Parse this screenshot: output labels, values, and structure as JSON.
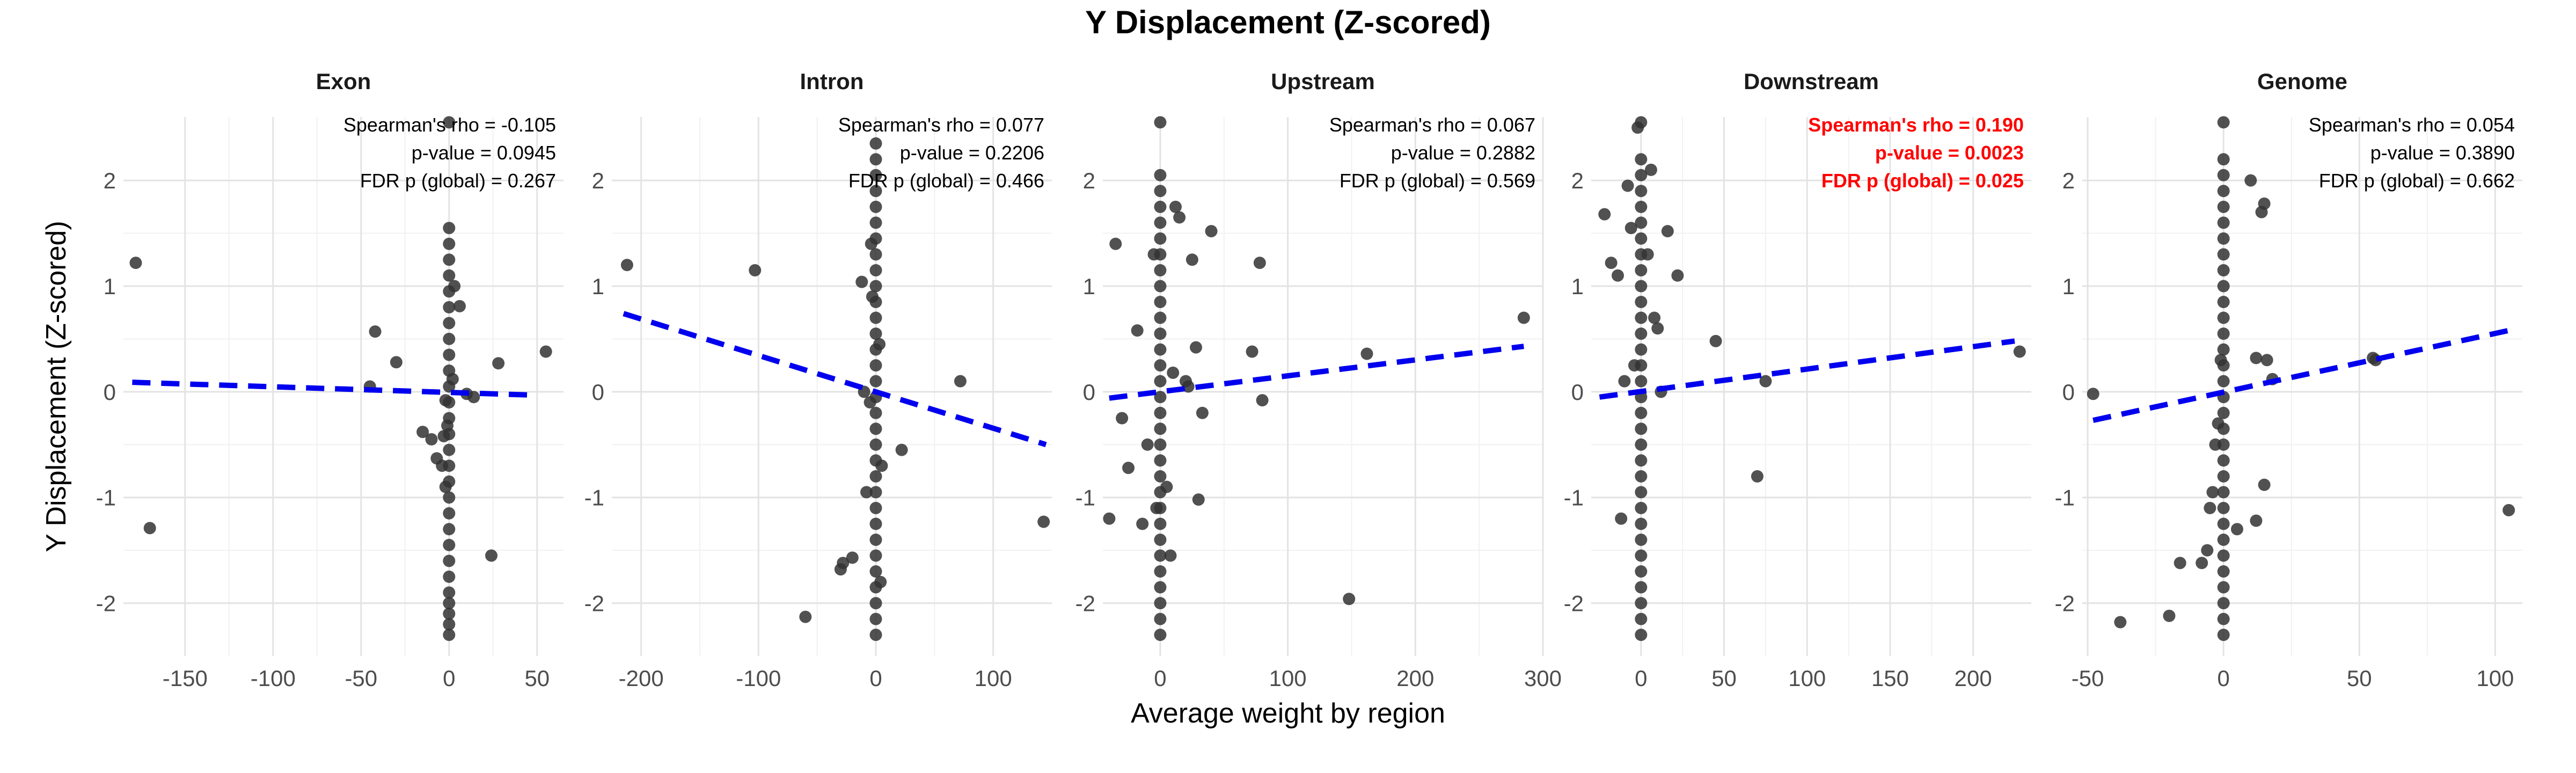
{
  "title": "Y Displacement (Z-scored)",
  "xlabel": "Average weight by region",
  "ylabel": "Y Displacement (Z-scored)",
  "highlight_color": "#ff0000",
  "chart_data": {
    "type": "scatter",
    "grid": true,
    "trend_style": "dashed linear fit",
    "trend_color": "#0000ee",
    "point_color": "#333333",
    "facets": [
      {
        "name": "Exon",
        "xlim": [
          -185,
          65
        ],
        "ylim": [
          -2.5,
          2.6
        ],
        "xticks": [
          -150,
          -100,
          -50,
          0,
          50
        ],
        "yticks": [
          -2,
          -1,
          0,
          1,
          2
        ],
        "stats": [
          "Spearman's rho = -0.105",
          "p-value = 0.0945",
          "FDR p (global) = 0.267"
        ],
        "significant": false,
        "trend": {
          "x": [
            -180,
            45
          ],
          "y": [
            0.09,
            -0.03
          ]
        },
        "points": [
          [
            -178,
            1.22
          ],
          [
            -170,
            -1.29
          ],
          [
            -42,
            0.57
          ],
          [
            -45,
            0.05
          ],
          [
            -30,
            0.28
          ],
          [
            -15,
            -0.38
          ],
          [
            -10,
            -0.45
          ],
          [
            -7,
            -0.63
          ],
          [
            -4,
            -0.7
          ],
          [
            -3,
            -0.42
          ],
          [
            -2,
            -0.08
          ],
          [
            -1,
            -0.32
          ],
          [
            6,
            0.81
          ],
          [
            10,
            -0.02
          ],
          [
            14,
            -0.05
          ],
          [
            24,
            -1.55
          ],
          [
            28,
            0.27
          ],
          [
            55,
            0.38
          ],
          [
            0,
            2.55
          ],
          [
            0,
            -2.3
          ],
          [
            0,
            -2.2
          ],
          [
            0,
            -2.1
          ],
          [
            0,
            -2.0
          ],
          [
            0,
            -1.9
          ],
          [
            0,
            -1.75
          ],
          [
            0,
            -1.6
          ],
          [
            0,
            -1.45
          ],
          [
            0,
            -1.3
          ],
          [
            0,
            -1.15
          ],
          [
            0,
            -1.0
          ],
          [
            0,
            -0.85
          ],
          [
            0,
            -0.7
          ],
          [
            0,
            -0.55
          ],
          [
            0,
            -0.4
          ],
          [
            0,
            -0.25
          ],
          [
            0,
            -0.1
          ],
          [
            0,
            0.05
          ],
          [
            0,
            0.2
          ],
          [
            0,
            0.35
          ],
          [
            0,
            0.5
          ],
          [
            0,
            0.65
          ],
          [
            0,
            0.8
          ],
          [
            0,
            0.95
          ],
          [
            0,
            1.1
          ],
          [
            0,
            1.25
          ],
          [
            0,
            1.4
          ],
          [
            0,
            1.55
          ],
          [
            2,
            0.12
          ],
          [
            -2,
            -0.9
          ],
          [
            3,
            1.0
          ]
        ]
      },
      {
        "name": "Intron",
        "xlim": [
          -225,
          150
        ],
        "ylim": [
          -2.5,
          2.6
        ],
        "xticks": [
          -200,
          -100,
          0,
          100
        ],
        "yticks": [
          -2,
          -1,
          0,
          1,
          2
        ],
        "stats": [
          "Spearman's rho = 0.077",
          "p-value = 0.2206",
          "FDR p (global) = 0.466"
        ],
        "significant": false,
        "trend": {
          "x": [
            -215,
            145
          ],
          "y": [
            0.74,
            -0.5
          ]
        },
        "points": [
          [
            -212,
            1.2
          ],
          [
            -103,
            1.15
          ],
          [
            -60,
            -2.13
          ],
          [
            -30,
            -1.68
          ],
          [
            -28,
            -1.62
          ],
          [
            -20,
            -1.57
          ],
          [
            -12,
            1.04
          ],
          [
            -10,
            0.0
          ],
          [
            -8,
            -0.95
          ],
          [
            -5,
            -0.1
          ],
          [
            -3,
            0.9
          ],
          [
            5,
            -0.7
          ],
          [
            22,
            -0.55
          ],
          [
            72,
            0.1
          ],
          [
            143,
            -1.23
          ],
          [
            0,
            -2.3
          ],
          [
            0,
            -2.15
          ],
          [
            0,
            -2.0
          ],
          [
            0,
            -1.85
          ],
          [
            0,
            -1.7
          ],
          [
            0,
            -1.55
          ],
          [
            0,
            -1.4
          ],
          [
            0,
            -1.25
          ],
          [
            0,
            -1.1
          ],
          [
            0,
            -0.95
          ],
          [
            0,
            -0.8
          ],
          [
            0,
            -0.65
          ],
          [
            0,
            -0.5
          ],
          [
            0,
            -0.35
          ],
          [
            0,
            -0.2
          ],
          [
            0,
            -0.05
          ],
          [
            0,
            0.1
          ],
          [
            0,
            0.25
          ],
          [
            0,
            0.4
          ],
          [
            0,
            0.55
          ],
          [
            0,
            0.7
          ],
          [
            0,
            0.85
          ],
          [
            0,
            1.0
          ],
          [
            0,
            1.15
          ],
          [
            0,
            1.3
          ],
          [
            0,
            1.45
          ],
          [
            0,
            1.6
          ],
          [
            0,
            1.75
          ],
          [
            0,
            1.9
          ],
          [
            0,
            2.05
          ],
          [
            0,
            2.2
          ],
          [
            0,
            2.35
          ],
          [
            3,
            0.45
          ],
          [
            -4,
            1.4
          ],
          [
            4,
            -1.8
          ]
        ]
      },
      {
        "name": "Upstream",
        "xlim": [
          -45,
          300
        ],
        "ylim": [
          -2.5,
          2.6
        ],
        "xticks": [
          0,
          100,
          200,
          300
        ],
        "yticks": [
          -2,
          -1,
          0,
          1,
          2
        ],
        "stats": [
          "Spearman's rho = 0.067",
          "p-value = 0.2882",
          "FDR p (global) = 0.569"
        ],
        "significant": false,
        "trend": {
          "x": [
            -40,
            285
          ],
          "y": [
            -0.06,
            0.43
          ]
        },
        "points": [
          [
            -35,
            1.4
          ],
          [
            -30,
            -0.25
          ],
          [
            -25,
            -0.72
          ],
          [
            -18,
            0.58
          ],
          [
            -14,
            -1.25
          ],
          [
            -10,
            -0.5
          ],
          [
            -5,
            1.3
          ],
          [
            -3,
            -1.1
          ],
          [
            5,
            -0.9
          ],
          [
            8,
            -1.55
          ],
          [
            10,
            0.18
          ],
          [
            12,
            1.75
          ],
          [
            15,
            1.65
          ],
          [
            20,
            0.1
          ],
          [
            22,
            0.05
          ],
          [
            25,
            1.25
          ],
          [
            28,
            0.42
          ],
          [
            30,
            -1.02
          ],
          [
            33,
            -0.2
          ],
          [
            40,
            1.52
          ],
          [
            72,
            0.38
          ],
          [
            78,
            1.22
          ],
          [
            80,
            -0.08
          ],
          [
            148,
            -1.96
          ],
          [
            162,
            0.36
          ],
          [
            285,
            0.7
          ],
          [
            -40,
            -1.2
          ],
          [
            0,
            2.55
          ],
          [
            0,
            -2.3
          ],
          [
            0,
            -2.15
          ],
          [
            0,
            -2.0
          ],
          [
            0,
            -1.85
          ],
          [
            0,
            -1.7
          ],
          [
            0,
            -1.55
          ],
          [
            0,
            -1.4
          ],
          [
            0,
            -1.25
          ],
          [
            0,
            -1.1
          ],
          [
            0,
            -0.95
          ],
          [
            0,
            -0.8
          ],
          [
            0,
            -0.65
          ],
          [
            0,
            -0.5
          ],
          [
            0,
            -0.35
          ],
          [
            0,
            -0.2
          ],
          [
            0,
            -0.05
          ],
          [
            0,
            0.1
          ],
          [
            0,
            0.25
          ],
          [
            0,
            0.4
          ],
          [
            0,
            0.55
          ],
          [
            0,
            0.7
          ],
          [
            0,
            0.85
          ],
          [
            0,
            1.0
          ],
          [
            0,
            1.15
          ],
          [
            0,
            1.3
          ],
          [
            0,
            1.45
          ],
          [
            0,
            1.6
          ],
          [
            0,
            1.75
          ],
          [
            0,
            1.9
          ],
          [
            0,
            2.05
          ]
        ]
      },
      {
        "name": "Downstream",
        "xlim": [
          -30,
          235
        ],
        "ylim": [
          -2.5,
          2.6
        ],
        "xticks": [
          0,
          50,
          100,
          150,
          200
        ],
        "yticks": [
          -2,
          -1,
          0,
          1,
          2
        ],
        "stats": [
          "Spearman's rho = 0.190",
          "p-value = 0.0023",
          "FDR p (global) = 0.025"
        ],
        "significant": true,
        "trend": {
          "x": [
            -25,
            225
          ],
          "y": [
            -0.05,
            0.48
          ]
        },
        "points": [
          [
            -22,
            1.68
          ],
          [
            -18,
            1.22
          ],
          [
            -14,
            1.1
          ],
          [
            -12,
            -1.2
          ],
          [
            -10,
            0.1
          ],
          [
            -8,
            1.95
          ],
          [
            -6,
            1.55
          ],
          [
            -4,
            0.25
          ],
          [
            -2,
            2.5
          ],
          [
            4,
            1.3
          ],
          [
            6,
            2.1
          ],
          [
            8,
            0.7
          ],
          [
            10,
            0.6
          ],
          [
            12,
            0.0
          ],
          [
            16,
            1.52
          ],
          [
            22,
            1.1
          ],
          [
            45,
            0.48
          ],
          [
            75,
            0.1
          ],
          [
            70,
            -0.8
          ],
          [
            228,
            0.38
          ],
          [
            0,
            2.55
          ],
          [
            0,
            -2.3
          ],
          [
            0,
            -2.15
          ],
          [
            0,
            -2.0
          ],
          [
            0,
            -1.85
          ],
          [
            0,
            -1.7
          ],
          [
            0,
            -1.55
          ],
          [
            0,
            -1.4
          ],
          [
            0,
            -1.25
          ],
          [
            0,
            -1.1
          ],
          [
            0,
            -0.95
          ],
          [
            0,
            -0.8
          ],
          [
            0,
            -0.65
          ],
          [
            0,
            -0.5
          ],
          [
            0,
            -0.35
          ],
          [
            0,
            -0.2
          ],
          [
            0,
            -0.05
          ],
          [
            0,
            0.1
          ],
          [
            0,
            0.25
          ],
          [
            0,
            0.4
          ],
          [
            0,
            0.55
          ],
          [
            0,
            0.7
          ],
          [
            0,
            0.85
          ],
          [
            0,
            1.0
          ],
          [
            0,
            1.15
          ],
          [
            0,
            1.3
          ],
          [
            0,
            1.45
          ],
          [
            0,
            1.6
          ],
          [
            0,
            1.75
          ],
          [
            0,
            1.9
          ],
          [
            0,
            2.05
          ],
          [
            0,
            2.2
          ]
        ]
      },
      {
        "name": "Genome",
        "xlim": [
          -52,
          110
        ],
        "ylim": [
          -2.5,
          2.6
        ],
        "xticks": [
          -50,
          0,
          50,
          100
        ],
        "yticks": [
          -2,
          -1,
          0,
          1,
          2
        ],
        "stats": [
          "Spearman's rho = 0.054",
          "p-value = 0.3890",
          "FDR p (global) = 0.662"
        ],
        "significant": false,
        "trend": {
          "x": [
            -48,
            105
          ],
          "y": [
            -0.27,
            0.58
          ]
        },
        "points": [
          [
            -48,
            -0.02
          ],
          [
            -38,
            -2.18
          ],
          [
            -20,
            -2.12
          ],
          [
            -16,
            -1.62
          ],
          [
            -8,
            -1.62
          ],
          [
            -6,
            -1.5
          ],
          [
            -5,
            -1.1
          ],
          [
            -4,
            -0.95
          ],
          [
            -3,
            -0.5
          ],
          [
            -2,
            -0.3
          ],
          [
            -1,
            0.3
          ],
          [
            5,
            -1.3
          ],
          [
            10,
            2.0
          ],
          [
            14,
            1.7
          ],
          [
            15,
            1.78
          ],
          [
            12,
            0.32
          ],
          [
            16,
            0.3
          ],
          [
            15,
            -0.88
          ],
          [
            12,
            -1.22
          ],
          [
            18,
            0.12
          ],
          [
            55,
            0.32
          ],
          [
            56,
            0.3
          ],
          [
            105,
            -1.12
          ],
          [
            0,
            2.55
          ],
          [
            0,
            -2.3
          ],
          [
            0,
            -2.15
          ],
          [
            0,
            -2.0
          ],
          [
            0,
            -1.85
          ],
          [
            0,
            -1.7
          ],
          [
            0,
            -1.55
          ],
          [
            0,
            -1.4
          ],
          [
            0,
            -1.25
          ],
          [
            0,
            -1.1
          ],
          [
            0,
            -0.95
          ],
          [
            0,
            -0.8
          ],
          [
            0,
            -0.65
          ],
          [
            0,
            -0.5
          ],
          [
            0,
            -0.35
          ],
          [
            0,
            -0.2
          ],
          [
            0,
            -0.05
          ],
          [
            0,
            0.1
          ],
          [
            0,
            0.25
          ],
          [
            0,
            0.4
          ],
          [
            0,
            0.55
          ],
          [
            0,
            0.7
          ],
          [
            0,
            0.85
          ],
          [
            0,
            1.0
          ],
          [
            0,
            1.15
          ],
          [
            0,
            1.3
          ],
          [
            0,
            1.45
          ],
          [
            0,
            1.6
          ],
          [
            0,
            1.75
          ],
          [
            0,
            1.9
          ],
          [
            0,
            2.05
          ],
          [
            0,
            2.2
          ]
        ]
      }
    ]
  }
}
